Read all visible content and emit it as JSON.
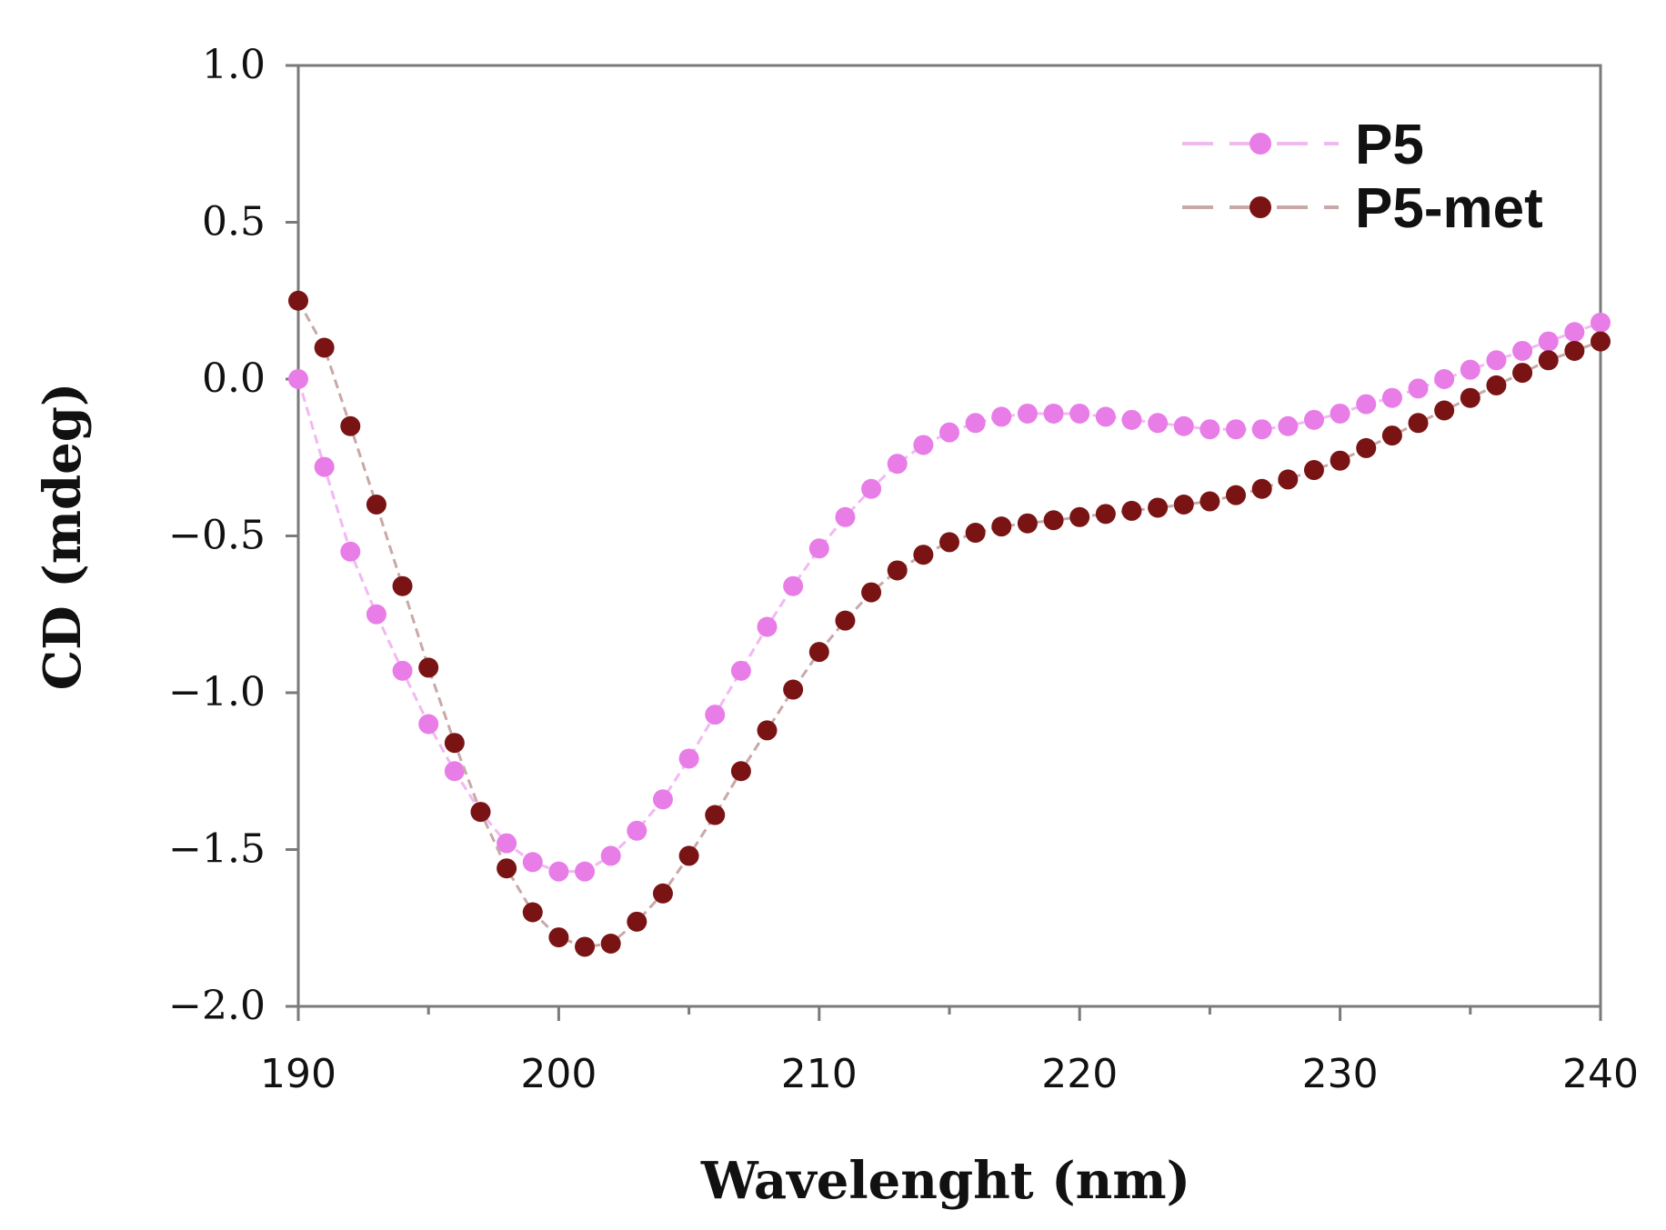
{
  "chart_data": {
    "type": "scatter",
    "xlabel": "Wavelenght (nm)",
    "ylabel": "CD (mdeg)",
    "xlim": [
      190,
      240
    ],
    "ylim": [
      -2.0,
      1.0
    ],
    "x_ticks": [
      190,
      200,
      210,
      220,
      230,
      240
    ],
    "x_tick_labels": [
      "190",
      "200",
      "210",
      "220",
      "230",
      "240"
    ],
    "y_ticks": [
      1.0,
      0.5,
      0.0,
      -0.5,
      -1.0,
      -1.5,
      -2.0
    ],
    "y_tick_labels": [
      "1.0",
      "0.5",
      "0.0",
      "−0.5",
      "−1.0",
      "−1.5",
      "−2.0"
    ],
    "legend_position": "top-right",
    "grid": false,
    "series": [
      {
        "name": "P5",
        "color": "#e87de8",
        "line_color": "#f2b8f2",
        "x": [
          190,
          191,
          192,
          193,
          194,
          195,
          196,
          197,
          198,
          199,
          200,
          201,
          202,
          203,
          204,
          205,
          206,
          207,
          208,
          209,
          210,
          211,
          212,
          213,
          214,
          215,
          216,
          217,
          218,
          219,
          220,
          221,
          222,
          223,
          224,
          225,
          226,
          227,
          228,
          229,
          230,
          231,
          232,
          233,
          234,
          235,
          236,
          237,
          238,
          239,
          240
        ],
        "values": [
          0.0,
          -0.28,
          -0.55,
          -0.75,
          -0.93,
          -1.1,
          -1.25,
          -1.38,
          -1.48,
          -1.54,
          -1.57,
          -1.57,
          -1.52,
          -1.44,
          -1.34,
          -1.21,
          -1.07,
          -0.93,
          -0.79,
          -0.66,
          -0.54,
          -0.44,
          -0.35,
          -0.27,
          -0.21,
          -0.17,
          -0.14,
          -0.12,
          -0.11,
          -0.11,
          -0.11,
          -0.12,
          -0.13,
          -0.14,
          -0.15,
          -0.16,
          -0.16,
          -0.16,
          -0.15,
          -0.13,
          -0.11,
          -0.08,
          -0.06,
          -0.03,
          0.0,
          0.03,
          0.06,
          0.09,
          0.12,
          0.15,
          0.18
        ]
      },
      {
        "name": "P5-met",
        "color": "#7a1414",
        "line_color": "#c9a8a8",
        "x": [
          190,
          191,
          192,
          193,
          194,
          195,
          196,
          197,
          198,
          199,
          200,
          201,
          202,
          203,
          204,
          205,
          206,
          207,
          208,
          209,
          210,
          211,
          212,
          213,
          214,
          215,
          216,
          217,
          218,
          219,
          220,
          221,
          222,
          223,
          224,
          225,
          226,
          227,
          228,
          229,
          230,
          231,
          232,
          233,
          234,
          235,
          236,
          237,
          238,
          239,
          240
        ],
        "values": [
          0.25,
          0.1,
          -0.15,
          -0.4,
          -0.66,
          -0.92,
          -1.16,
          -1.38,
          -1.56,
          -1.7,
          -1.78,
          -1.81,
          -1.8,
          -1.73,
          -1.64,
          -1.52,
          -1.39,
          -1.25,
          -1.12,
          -0.99,
          -0.87,
          -0.77,
          -0.68,
          -0.61,
          -0.56,
          -0.52,
          -0.49,
          -0.47,
          -0.46,
          -0.45,
          -0.44,
          -0.43,
          -0.42,
          -0.41,
          -0.4,
          -0.39,
          -0.37,
          -0.35,
          -0.32,
          -0.29,
          -0.26,
          -0.22,
          -0.18,
          -0.14,
          -0.1,
          -0.06,
          -0.02,
          0.02,
          0.06,
          0.09,
          0.12
        ]
      }
    ]
  }
}
